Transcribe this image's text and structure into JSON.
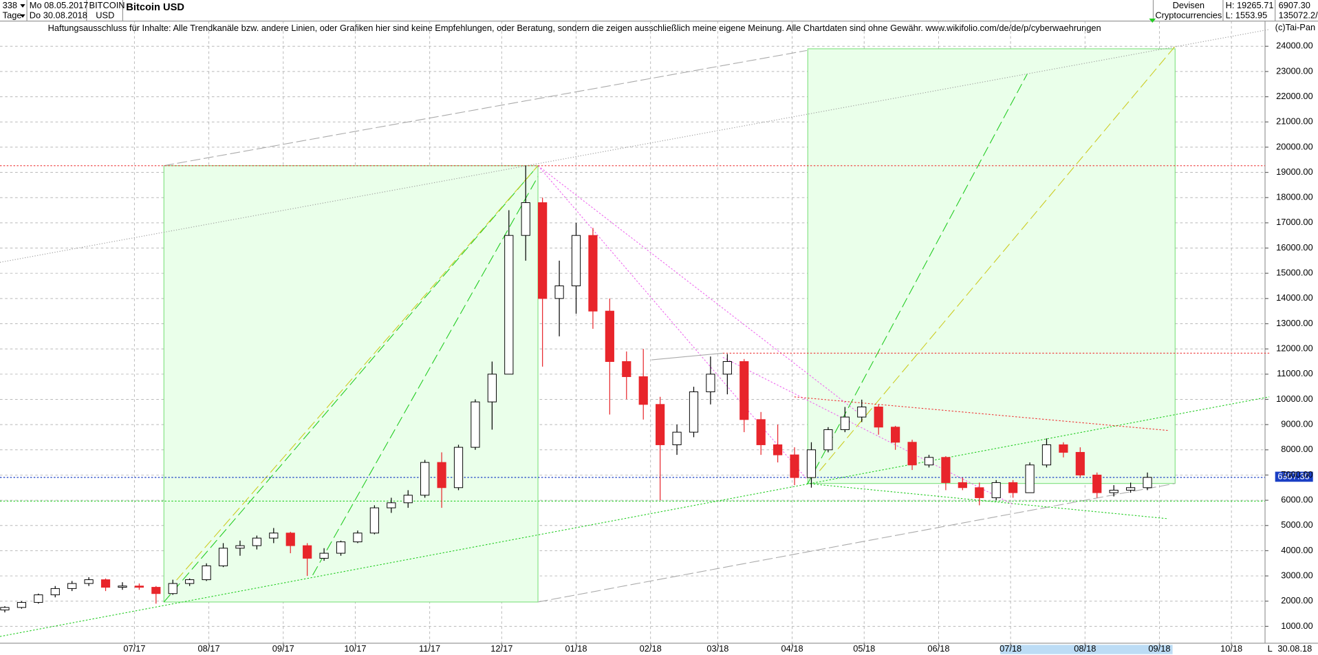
{
  "header": {
    "count": "338",
    "period": "Tage",
    "from": "Mo 08.05.2017",
    "to": "Do 30.08.2018",
    "symbol": "BITCOIN",
    "currency": "USD",
    "group": "Devisen",
    "sector": "Cryptocurrencies",
    "high": "H: 19265.71",
    "low": "L: 1553.95",
    "last": "6907.30",
    "volume": "135072.2/",
    "disclaimer": "Haftungsausschluss für Inhalte: Alle Trendkanäle bzw. andere Linien, oder Grafiken hier sind keine Empfehlungen, oder Beratung, sondern die zeigen ausschließlich meine eigene Meinung. Alle Chartdaten sind ohne Gewähr.  www.wikifolio.com/de/de/p/cyberwaehrungen",
    "copyright": "(c)Tai-Pan",
    "end_date": "30.08.18",
    "scale": "L"
  },
  "chart_data": {
    "type": "candlestick",
    "title": "Bitcoin USD",
    "x": [
      0,
      7,
      14,
      21,
      28,
      35,
      42,
      49,
      56,
      63,
      70,
      77,
      84,
      91,
      98,
      105,
      112,
      119,
      126,
      133,
      140,
      147,
      154,
      161,
      168,
      175,
      182,
      189,
      196,
      203,
      210,
      217,
      224,
      231,
      238,
      245,
      252,
      259,
      266,
      273,
      280,
      287,
      294,
      301,
      308,
      315,
      322,
      329,
      336,
      343,
      350,
      357,
      364,
      371,
      378,
      385,
      392,
      399,
      406,
      413,
      420,
      427,
      434,
      441,
      448,
      455,
      462,
      469,
      476
    ],
    "open": [
      1650,
      1750,
      1950,
      2250,
      2500,
      2700,
      2850,
      2550,
      2600,
      2550,
      2300,
      2700,
      2850,
      3400,
      4100,
      4200,
      4500,
      4700,
      4200,
      3700,
      3900,
      4350,
      4700,
      5700,
      5900,
      6200,
      7500,
      6500,
      8100,
      9900,
      11000,
      16500,
      17800,
      14000,
      14500,
      16500,
      13500,
      11500,
      10900,
      9800,
      8200,
      8700,
      10300,
      11000,
      11500,
      9200,
      8200,
      7800,
      6900,
      8000,
      8800,
      9300,
      9700,
      8900,
      8300,
      7400,
      7700,
      6700,
      6500,
      6100,
      6700,
      6300,
      7400,
      8200,
      7900,
      7000,
      6300,
      6400,
      6500
    ],
    "high": [
      1800,
      2000,
      2300,
      2600,
      2800,
      2950,
      2900,
      2750,
      2700,
      2600,
      2850,
      2900,
      3500,
      4300,
      4400,
      4600,
      4900,
      4750,
      4300,
      4100,
      4400,
      4800,
      5800,
      6100,
      6400,
      7600,
      7900,
      8200,
      10000,
      11500,
      17500,
      19265.71,
      18000,
      15500,
      17000,
      16800,
      14000,
      11900,
      12000,
      10100,
      9000,
      10500,
      11700,
      11800,
      11600,
      9500,
      9000,
      8100,
      8300,
      8900,
      9700,
      9990,
      9800,
      8950,
      8400,
      7800,
      7750,
      6900,
      6700,
      6800,
      6800,
      7500,
      8450,
      8300,
      8100,
      7100,
      6600,
      6700,
      7100
    ],
    "low": [
      1553.95,
      1700,
      1900,
      2150,
      2400,
      2600,
      2400,
      2450,
      2450,
      1900,
      2250,
      2600,
      2800,
      3350,
      3800,
      4050,
      4300,
      3900,
      3000,
      3600,
      3800,
      4300,
      4650,
      5500,
      5700,
      6100,
      5700,
      6400,
      8000,
      8800,
      11000,
      15500,
      11300,
      12500,
      13400,
      12800,
      9400,
      10000,
      9200,
      6000,
      7800,
      8500,
      9800,
      10200,
      8700,
      7800,
      7500,
      6600,
      6500,
      7900,
      8700,
      9100,
      8600,
      8000,
      7200,
      7300,
      6400,
      6400,
      5800,
      6000,
      6100,
      6300,
      7300,
      7700,
      6900,
      6100,
      6150,
      6300,
      6400
    ],
    "close": [
      1750,
      1950,
      2250,
      2500,
      2700,
      2850,
      2550,
      2600,
      2550,
      2300,
      2700,
      2850,
      3400,
      4100,
      4200,
      4500,
      4700,
      4200,
      3700,
      3900,
      4350,
      4700,
      5700,
      5900,
      6200,
      7500,
      6500,
      8100,
      9900,
      11000,
      16500,
      17800,
      14000,
      14500,
      16500,
      13500,
      11500,
      10900,
      9800,
      8200,
      8700,
      10300,
      11000,
      11500,
      9200,
      8200,
      7800,
      6900,
      8000,
      8800,
      9300,
      9700,
      8900,
      8300,
      7400,
      7700,
      6700,
      6500,
      6100,
      6700,
      6300,
      7400,
      8200,
      7900,
      7000,
      6300,
      6400,
      6500,
      6907.3
    ],
    "up_color": "#ffffff",
    "down_color": "#e8252b",
    "xlim": [
      -2,
      525
    ],
    "xticks": [
      {
        "value": 54,
        "label": "07/17"
      },
      {
        "value": 85,
        "label": "08/17"
      },
      {
        "value": 116,
        "label": "09/17"
      },
      {
        "value": 146,
        "label": "10/17"
      },
      {
        "value": 177,
        "label": "11/17"
      },
      {
        "value": 207,
        "label": "12/17"
      },
      {
        "value": 238,
        "label": "01/18"
      },
      {
        "value": 269,
        "label": "02/18"
      },
      {
        "value": 297,
        "label": "03/18"
      },
      {
        "value": 328,
        "label": "04/18"
      },
      {
        "value": 358,
        "label": "05/18"
      },
      {
        "value": 389,
        "label": "06/18"
      },
      {
        "value": 419,
        "label": "07/18"
      },
      {
        "value": 450,
        "label": "08/18"
      },
      {
        "value": 481,
        "label": "09/18"
      },
      {
        "value": 511,
        "label": "10/18"
      }
    ],
    "ylim": [
      333,
      25000
    ],
    "yticks": [
      {
        "value": 1000,
        "label": "1000.00"
      },
      {
        "value": 2000,
        "label": "2000.00"
      },
      {
        "value": 3000,
        "label": "3000.00"
      },
      {
        "value": 4000,
        "label": "4000.00"
      },
      {
        "value": 5000,
        "label": "5000.00"
      },
      {
        "value": 6000,
        "label": "6000.00"
      },
      {
        "value": 7000,
        "label": "7000.00"
      },
      {
        "value": 8000,
        "label": "8000.00"
      },
      {
        "value": 9000,
        "label": "9000.00"
      },
      {
        "value": 10000,
        "label": "10000.00"
      },
      {
        "value": 11000,
        "label": "11000.00"
      },
      {
        "value": 12000,
        "label": "12000.00"
      },
      {
        "value": 13000,
        "label": "13000.00"
      },
      {
        "value": 14000,
        "label": "14000.00"
      },
      {
        "value": 15000,
        "label": "15000.00"
      },
      {
        "value": 16000,
        "label": "16000.00"
      },
      {
        "value": 17000,
        "label": "17000.00"
      },
      {
        "value": 18000,
        "label": "18000.00"
      },
      {
        "value": 19000,
        "label": "19000.00"
      },
      {
        "value": 20000,
        "label": "20000.00"
      },
      {
        "value": 21000,
        "label": "21000.00"
      },
      {
        "value": 22000,
        "label": "22000.00"
      },
      {
        "value": 23000,
        "label": "23000.00"
      },
      {
        "value": 24000,
        "label": "24000.00"
      }
    ],
    "grid": true
  }
}
